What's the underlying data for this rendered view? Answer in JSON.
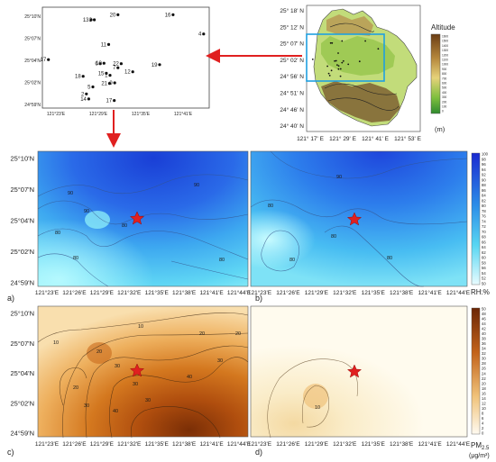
{
  "station_map": {
    "lat_ticks": [
      "25°10'N",
      "25°07'N",
      "25°04'N",
      "25°02'N",
      "24°59'N"
    ],
    "lon_ticks": [
      "121°23'E",
      "121°29'E",
      "121°35'E",
      "121°41'E"
    ],
    "stations": [
      {
        "id": "20",
        "lon": 121.533,
        "lat": 25.16
      },
      {
        "id": "16",
        "lon": 121.652,
        "lat": 25.16
      },
      {
        "id": "13",
        "lon": 121.475,
        "lat": 25.15
      },
      {
        "id": "3",
        "lon": 121.482,
        "lat": 25.15
      },
      {
        "id": "4",
        "lon": 121.718,
        "lat": 25.122
      },
      {
        "id": "11",
        "lon": 121.513,
        "lat": 25.101
      },
      {
        "id": "17",
        "lon": 121.383,
        "lat": 25.071
      },
      {
        "id": "6",
        "lon": 121.495,
        "lat": 25.063
      },
      {
        "id": "10",
        "lon": 121.503,
        "lat": 25.064
      },
      {
        "id": "22",
        "lon": 121.54,
        "lat": 25.063
      },
      {
        "id": "7",
        "lon": 121.533,
        "lat": 25.055
      },
      {
        "id": "19",
        "lon": 121.623,
        "lat": 25.061
      },
      {
        "id": "12",
        "lon": 121.565,
        "lat": 25.047
      },
      {
        "id": "15",
        "lon": 121.508,
        "lat": 25.044
      },
      {
        "id": "1",
        "lon": 121.516,
        "lat": 25.04
      },
      {
        "id": "18",
        "lon": 121.458,
        "lat": 25.038
      },
      {
        "id": "21",
        "lon": 121.515,
        "lat": 25.024
      },
      {
        "id": "9",
        "lon": 121.526,
        "lat": 25.025
      },
      {
        "id": "5",
        "lon": 121.479,
        "lat": 25.017
      },
      {
        "id": "2",
        "lon": 121.465,
        "lat": 25.003
      },
      {
        "id": "14",
        "lon": 121.47,
        "lat": 24.993
      },
      {
        "id": "17b",
        "label": "17",
        "lon": 121.525,
        "lat": 24.99
      }
    ]
  },
  "topo_map": {
    "lat_ticks": [
      "25° 18' N",
      "25° 12' N",
      "25° 07' N",
      "25° 02' N",
      "24° 56' N",
      "24° 51' N",
      "24° 46' N",
      "24° 40' N"
    ],
    "lon_ticks": [
      "121° 17' E",
      "121° 29' E",
      "121° 41' E",
      "121° 53' E"
    ],
    "legend_title": "Altitude",
    "legend_values": [
      "1600",
      "1500",
      "1400",
      "1300",
      "1200",
      "1100",
      "1000",
      "900",
      "800",
      "700",
      "600",
      "500",
      "400",
      "300",
      "200",
      "100",
      "0"
    ],
    "legend_unit": "(m)",
    "colors": {
      "high": "#8b5a2b",
      "mid": "#d8c66a",
      "low": "#9ec94a",
      "lowest": "#c9e08a",
      "frame": "#1fa0e0"
    }
  },
  "panels": {
    "lat_ticks": [
      "25°10'N",
      "25°07'N",
      "25°04'N",
      "25°02'N",
      "24°59'N"
    ],
    "lon_ticks_a": [
      "121°23'E",
      "121°26'E",
      "121°29'E",
      "121°32'E",
      "121°35'E",
      "121°38'E",
      "121°41'E",
      "121°44'E"
    ],
    "lon_ticks_b": [
      "121°23'E",
      "121°26'E",
      "121°29'E",
      "121°32'E",
      "121°35'E",
      "121°38'E",
      "121°41'E",
      "121°44'E"
    ],
    "labels": {
      "a": "a)",
      "b": "b)",
      "c": "c)",
      "d": "d)"
    },
    "rh": {
      "unit": "RH:%",
      "scale": [
        "100",
        "98",
        "96",
        "94",
        "92",
        "90",
        "88",
        "86",
        "84",
        "82",
        "80",
        "78",
        "76",
        "74",
        "72",
        "70",
        "68",
        "66",
        "64",
        "62",
        "60",
        "58",
        "56",
        "54",
        "52",
        "50"
      ],
      "a_contours": [
        "90",
        "90",
        "90",
        "80",
        "80",
        "80",
        "80"
      ],
      "b_contours": [
        "90",
        "80",
        "80",
        "80",
        "80"
      ]
    },
    "pm": {
      "unit_main": "PM",
      "unit_sub": "2.5",
      "unit_line2": "(μg/m³)",
      "scale": [
        "50",
        "48",
        "46",
        "44",
        "42",
        "40",
        "38",
        "36",
        "34",
        "32",
        "30",
        "28",
        "26",
        "24",
        "22",
        "20",
        "18",
        "16",
        "14",
        "12",
        "10",
        "8",
        "6",
        "4",
        "2",
        "0"
      ],
      "c_contours": [
        "10",
        "10",
        "20",
        "20",
        "20",
        "30",
        "30",
        "30",
        "40",
        "20",
        "30",
        "30",
        "40"
      ],
      "d_contours": [
        "10"
      ]
    },
    "colors": {
      "star": "#e02020",
      "arrow": "#e02020"
    }
  }
}
